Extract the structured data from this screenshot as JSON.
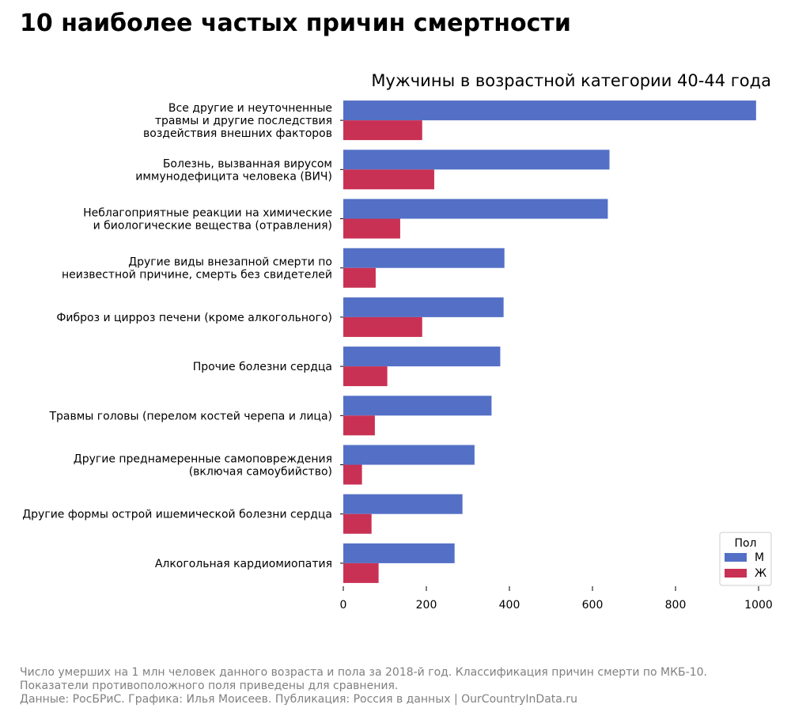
{
  "page": {
    "title": "10 наиболее частых причин смертности",
    "footer": [
      "Число умерших на 1 млн человек данного возраста и пола за 2018-й год. Классификация причин смерти по МКБ-10.",
      "Показатели противоположного поля приведены для сравнения.",
      "Данные: РосБРиС. Графика: Илья Моисеев. Публикация: Россия в данных | OurCountryInData.ru"
    ]
  },
  "chart_data": {
    "type": "bar",
    "orientation": "horizontal",
    "title": "Мужчины в возрастной категории 40-44 года",
    "xlabel": "",
    "ylabel": "",
    "xlim": [
      0,
      1000
    ],
    "xticks": [
      0,
      200,
      400,
      600,
      800,
      1000
    ],
    "grid": false,
    "legend": {
      "title": "Пол",
      "placement": "lower-right"
    },
    "categories": [
      [
        "Все другие и неуточненные",
        "травмы и другие последствия",
        "воздействия внешних факторов"
      ],
      [
        "Болезнь, вызванная вирусом",
        "иммунодефицита человека (ВИЧ)"
      ],
      [
        "Неблагоприятные реакции на химические",
        "и биологические вещества (отравления)"
      ],
      [
        "Другие виды внезапной смерти по",
        "неизвестной причине, смерть без свидетелей"
      ],
      [
        "Фиброз и цирроз печени (кроме алкогольного)"
      ],
      [
        "Прочие болезни сердца"
      ],
      [
        "Травмы головы (перелом костей черепа и лица)"
      ],
      [
        "Другие преднамеренные самоповреждения",
        "(включая самоубийство)"
      ],
      [
        "Другие формы острой ишемической болезни сердца"
      ],
      [
        "Алкогольная кардиомиопатия"
      ]
    ],
    "series": [
      {
        "name": "М",
        "color": "#5470c6",
        "values": [
          994,
          641,
          637,
          388,
          386,
          378,
          357,
          316,
          287,
          268
        ]
      },
      {
        "name": "Ж",
        "color": "#c93154",
        "values": [
          190,
          219,
          137,
          78,
          190,
          106,
          76,
          45,
          68,
          85
        ]
      }
    ]
  }
}
